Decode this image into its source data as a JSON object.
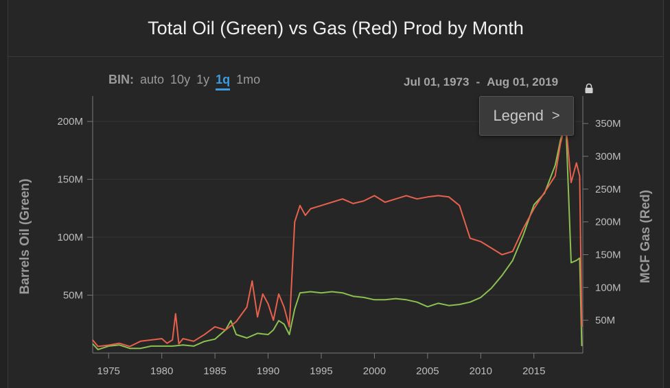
{
  "title": "Total Oil (Green) vs Gas (Red) Prod by Month",
  "bin": {
    "label": "BIN:",
    "options": [
      "auto",
      "10y",
      "1y",
      "1q",
      "1mo"
    ],
    "active": "1q"
  },
  "date_range": {
    "start": "Jul 01, 1973",
    "sep": "-",
    "end": "Aug 01, 2019"
  },
  "legend": {
    "label": "Legend",
    "chevron": ">"
  },
  "colors": {
    "oil": "#8cc152",
    "gas": "#e8614d",
    "grid": "#353535",
    "axis": "#7a7a7a"
  },
  "chart_data": {
    "type": "line",
    "title": "Total Oil (Green) vs Gas (Red) Prod by Month",
    "xlabel": "",
    "ylabel": "Barrels Oil (Green)",
    "y2label": "MCF Gas (Red)",
    "xlim": [
      1973.5,
      2019.6
    ],
    "ylim": [
      0,
      222
    ],
    "y2lim": [
      0,
      392
    ],
    "x_ticks": [
      1975,
      1980,
      1985,
      1990,
      1995,
      2000,
      2005,
      2010,
      2015
    ],
    "y_ticks": [
      "50M",
      "100M",
      "150M",
      "200M"
    ],
    "y_tick_values": [
      50,
      100,
      150,
      200
    ],
    "y2_ticks": [
      "50M",
      "100M",
      "150M",
      "200M",
      "250M",
      "300M",
      "350M"
    ],
    "y2_tick_values": [
      50,
      100,
      150,
      200,
      250,
      300,
      350
    ],
    "series": [
      {
        "name": "Oil",
        "axis": "left",
        "units": "M barrels",
        "x": [
          1973.5,
          1974,
          1975,
          1976,
          1977,
          1978,
          1979,
          1980,
          1981,
          1982,
          1983,
          1984,
          1985,
          1986,
          1986.5,
          1987,
          1988,
          1989,
          1990,
          1990.5,
          1991,
          1991.5,
          1992,
          1992.5,
          1993,
          1994,
          1995,
          1996,
          1997,
          1998,
          1999,
          2000,
          2001,
          2002,
          2003,
          2004,
          2005,
          2006,
          2007,
          2008,
          2009,
          2010,
          2011,
          2012,
          2013,
          2014,
          2015,
          2016,
          2017,
          2017.5,
          2018,
          2018.5,
          2019,
          2019.3,
          2019.5
        ],
        "values": [
          8,
          3,
          6,
          7,
          4,
          4,
          6,
          6,
          6,
          7,
          6,
          10,
          12,
          20,
          28,
          16,
          13,
          17,
          16,
          20,
          28,
          25,
          16,
          38,
          52,
          53,
          52,
          53,
          52,
          49,
          48,
          46,
          46,
          47,
          46,
          44,
          40,
          43,
          41,
          42,
          44,
          48,
          56,
          67,
          80,
          102,
          128,
          138,
          162,
          184,
          200,
          78,
          80,
          82,
          6
        ]
      },
      {
        "name": "Gas",
        "axis": "right",
        "units": "M MCF",
        "x": [
          1973.5,
          1974,
          1975,
          1976,
          1977,
          1978,
          1979,
          1980,
          1980.5,
          1981,
          1981.3,
          1981.6,
          1982,
          1983,
          1984,
          1985,
          1986,
          1987,
          1988,
          1988.5,
          1989,
          1989.5,
          1990,
          1990.5,
          1991,
          1991.5,
          1992,
          1992.5,
          1993,
          1993.5,
          1994,
          1995,
          1996,
          1997,
          1998,
          1999,
          2000,
          2001,
          2002,
          2003,
          2004,
          2005,
          2006,
          2007,
          2008,
          2009,
          2010,
          2011,
          2012,
          2013,
          2014,
          2015,
          2016,
          2017,
          2017.5,
          2018,
          2018.5,
          2019,
          2019.3,
          2019.5
        ],
        "values": [
          20,
          10,
          12,
          15,
          10,
          18,
          20,
          22,
          15,
          20,
          60,
          14,
          22,
          18,
          28,
          40,
          35,
          48,
          70,
          110,
          55,
          90,
          75,
          50,
          90,
          70,
          40,
          200,
          225,
          210,
          220,
          225,
          230,
          235,
          228,
          232,
          240,
          230,
          235,
          240,
          235,
          238,
          240,
          238,
          225,
          175,
          170,
          160,
          150,
          155,
          190,
          220,
          245,
          270,
          320,
          350,
          260,
          290,
          270,
          40
        ]
      }
    ]
  }
}
